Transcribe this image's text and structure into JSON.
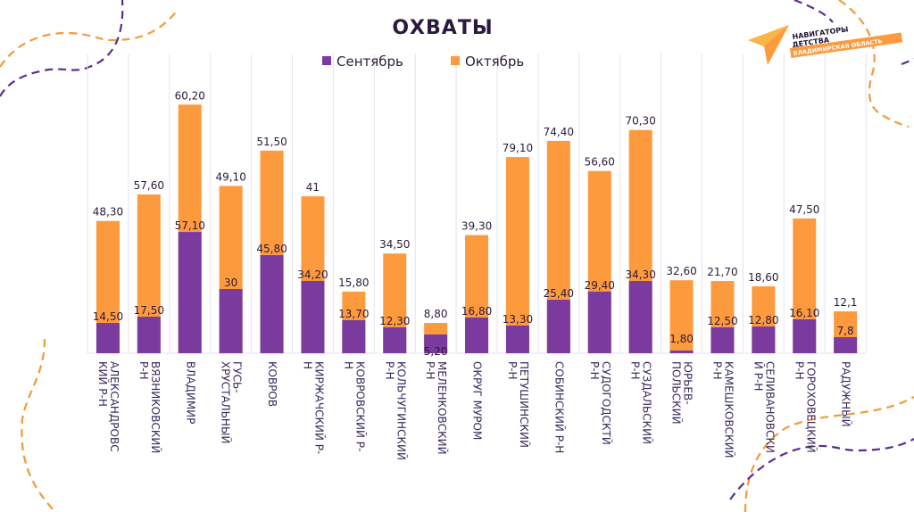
{
  "logo": {
    "line1": "НАВИГАТОРЫ",
    "line2": "ДЕТСТВА",
    "band": "ВЛАДИМИРСКАЯ ОБЛАСТЬ"
  },
  "colors": {
    "september": "#7b3a9e",
    "october": "#fd9a3e",
    "text": "#2b1a3d",
    "grid": "#e6e1ee",
    "deco_purple": "#5b2d8e",
    "deco_orange": "#f29a3c"
  },
  "chart_data": {
    "type": "bar",
    "title": "ОХВАТЫ",
    "xlabel": "",
    "ylabel": "",
    "grid": true,
    "legend_position": "top-center",
    "legend": [
      "Сентябрь",
      "Октябрь"
    ],
    "categories": [
      "АЛЕКСАНДРОВСКИЙ Р-Н",
      "ВЯЗНИКОВСКИЙ Р-Н",
      "ВЛАДИМИР",
      "ГУСЬ-ХРУСТАЛЬНЫЙ",
      "КОВРОВ",
      "КИРЖАЧСКИЙ Р-Н",
      "КОВРОВСКИЙ Р-Н",
      "КОЛЬЧУГИНСКИЙ Р-Н",
      "МЕЛЕНКОВСКИЙ Р-Н",
      "ОКРУГ МУРОМ",
      "ПЕТУШИНСКИЙ Р-Н",
      "СОБИНСКИЙ Р-Н",
      "СУДОГОДСКИЙ Р-Н",
      "СУЗДАЛЬСКИЙ Р-Н",
      "ЮРЬЕВ-ПОЛЬСКИЙ",
      "КАМЕШКОВСКИЙ Р-Н",
      "СЕЛИВАНОВСКИЙ Р-Н",
      "ГОРОХОВЕЦКИЙ Р-Н",
      "РАДУЖНЫЙ"
    ],
    "category_lines": [
      [
        "АЛЕКСАНДРОВС",
        "КИЙ Р-Н"
      ],
      [
        "ВЯЗНИКОВСКИЙ",
        "Р-Н"
      ],
      [
        "ВЛАДИМИР"
      ],
      [
        "ГУСЬ-",
        "ХРУСТАЛЬНЫЙ"
      ],
      [
        "КОВРОВ"
      ],
      [
        "КИРЖАЧСКИЙ Р-",
        "Н"
      ],
      [
        "КОВРОВСКИЙ Р-",
        "Н"
      ],
      [
        "КОЛЬЧУГИНСКИЙ",
        "Р-Н"
      ],
      [
        "МЕЛЕНКОВСКИЙ",
        "Р-Н"
      ],
      [
        "ОКРУГ МУРОМ"
      ],
      [
        "ПЕТУШИНСКИЙ",
        "Р-Н"
      ],
      [
        "СОБИНСКИЙ Р-Н"
      ],
      [
        "СУДОГОДСКТЙ",
        "Р-Н"
      ],
      [
        "СУЗДАЛЬСКИЙ",
        "Р-Н"
      ],
      [
        "ЮРЬЕВ-",
        "ПОЛЬСКИЙ"
      ],
      [
        "КАМЕШКОВСКИЙ",
        "Р-Н"
      ],
      [
        "СЕЛИВАНОВСКИ",
        "Й Р-Н"
      ],
      [
        "ГОРОХОВЕЦКИЙ",
        "Р-Н"
      ],
      [
        "РАДУЖНЫЙ"
      ]
    ],
    "series": [
      {
        "name": "Сентябрь",
        "values": [
          14.5,
          17.5,
          57.1,
          30,
          45.8,
          34.2,
          13.7,
          12.3,
          5.2,
          16.8,
          13.3,
          25.4,
          29.4,
          34.3,
          1.8,
          12.5,
          12.8,
          16.1,
          7.8
        ],
        "labels": [
          "14,50",
          "17,50",
          "57,10",
          "30",
          "45,80",
          "34,20",
          "13,70",
          "12,30",
          "5,20",
          "16,80",
          "13,30",
          "25,40",
          "29,40",
          "34,30",
          "1,80",
          "12,50",
          "12,80",
          "16,10",
          "7,8"
        ]
      },
      {
        "name": "Октябрь",
        "values": [
          48.3,
          57.6,
          60.2,
          49.1,
          51.5,
          41,
          15.8,
          34.5,
          8.8,
          39.3,
          79.1,
          74.4,
          56.6,
          70.3,
          32.6,
          21.7,
          18.6,
          47.5,
          12.1
        ],
        "labels": [
          "48,30",
          "57,60",
          "60,20",
          "49,10",
          "51,50",
          "41",
          "15,80",
          "34,50",
          "8,80",
          "39,30",
          "79,10",
          "74,40",
          "56,60",
          "70,30",
          "32,60",
          "21,70",
          "18,60",
          "47,50",
          "12,1"
        ]
      }
    ]
  }
}
